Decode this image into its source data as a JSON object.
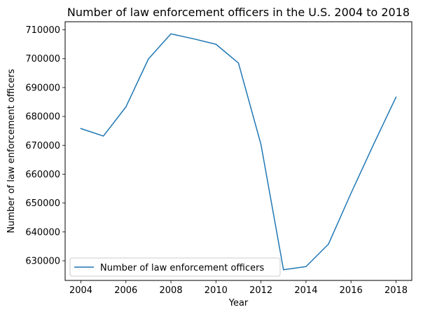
{
  "chart_data": {
    "type": "line",
    "title": "Number of law enforcement officers in the U.S. 2004 to 2018",
    "xlabel": "Year",
    "ylabel": "Number of law enforcement officers",
    "xlim": [
      2003.3,
      2018.7
    ],
    "ylim": [
      623200,
      712800
    ],
    "xticks": [
      2004,
      2006,
      2008,
      2010,
      2012,
      2014,
      2016,
      2018
    ],
    "yticks": [
      630000,
      640000,
      650000,
      660000,
      670000,
      680000,
      690000,
      700000,
      710000
    ],
    "grid": false,
    "legend_position": "lower left",
    "series": [
      {
        "name": "Number of law enforcement officers",
        "color": "#1f77b4",
        "x": [
          2004,
          2005,
          2006,
          2007,
          2008,
          2009,
          2010,
          2011,
          2012,
          2013,
          2014,
          2015,
          2016,
          2017,
          2018
        ],
        "y": [
          675800,
          673200,
          683300,
          699900,
          708600,
          706900,
          705000,
          698500,
          670300,
          626900,
          628000,
          635800,
          653400,
          670300,
          686700
        ]
      }
    ]
  }
}
